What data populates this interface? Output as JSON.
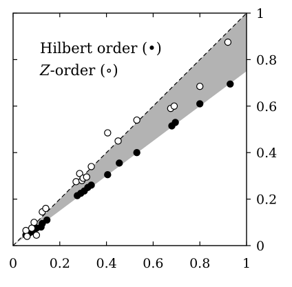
{
  "chart_data": {
    "type": "scatter",
    "title": "",
    "xlabel": "",
    "ylabel": "",
    "xlim": [
      0,
      1
    ],
    "ylim": [
      0,
      1
    ],
    "x_ticks": [
      "0",
      "0.2",
      "0.4",
      "0.6",
      "0.8",
      "1"
    ],
    "y_ticks": [
      "0",
      "0.2",
      "0.4",
      "0.6",
      "0.8",
      "1"
    ],
    "y_axis_side": "right",
    "grid": false,
    "legend_position": "top-left",
    "shaded_band": {
      "x": [
        0,
        1
      ],
      "lower": [
        0,
        0.75
      ],
      "upper": [
        0,
        1
      ],
      "color": "#b3b3b3"
    },
    "reference_line": {
      "x": [
        0,
        1
      ],
      "y": [
        0,
        1
      ],
      "style": "dashed"
    },
    "series": [
      {
        "name": "Hilbert order (•)",
        "marker": "filled-circle",
        "x": [
          0.055,
          0.06,
          0.07,
          0.08,
          0.09,
          0.1,
          0.12,
          0.125,
          0.145,
          0.275,
          0.29,
          0.305,
          0.32,
          0.335,
          0.405,
          0.455,
          0.53,
          0.68,
          0.695,
          0.8,
          0.93
        ],
        "y": [
          0.045,
          0.05,
          0.055,
          0.06,
          0.07,
          0.075,
          0.08,
          0.095,
          0.11,
          0.215,
          0.225,
          0.235,
          0.25,
          0.26,
          0.305,
          0.355,
          0.4,
          0.515,
          0.53,
          0.61,
          0.695
        ]
      },
      {
        "name": "Z-order (∘)",
        "marker": "open-circle",
        "x": [
          0.055,
          0.06,
          0.08,
          0.09,
          0.1,
          0.125,
          0.14,
          0.27,
          0.285,
          0.295,
          0.3,
          0.315,
          0.335,
          0.405,
          0.45,
          0.53,
          0.675,
          0.69,
          0.8,
          0.92
        ],
        "y": [
          0.065,
          0.04,
          0.075,
          0.1,
          0.045,
          0.145,
          0.16,
          0.275,
          0.31,
          0.28,
          0.29,
          0.295,
          0.34,
          0.485,
          0.45,
          0.54,
          0.59,
          0.6,
          0.685,
          0.875
        ]
      }
    ],
    "legend": {
      "line1_main": "Hilbert order (",
      "line1_mark": "•",
      "line1_end": ")",
      "line2_italic": "Z",
      "line2_rest": "-order (",
      "line2_mark": "∘",
      "line2_end": ")"
    },
    "colors": {
      "band": "#b3b3b3",
      "ink": "#000000",
      "hollow_fill": "#ffffff"
    }
  }
}
